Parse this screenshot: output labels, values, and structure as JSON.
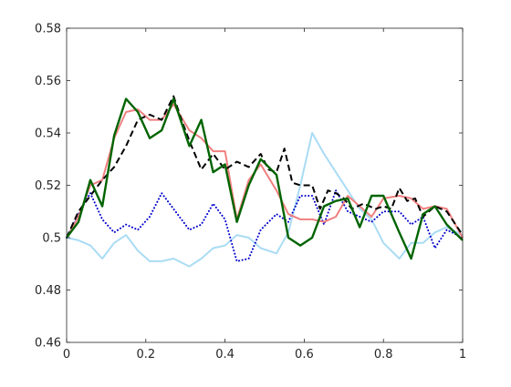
{
  "chart_data": {
    "type": "line",
    "title": "",
    "xlabel": "",
    "ylabel": "",
    "xlim": [
      0,
      1
    ],
    "ylim": [
      0.46,
      0.58
    ],
    "xticks": [
      0,
      0.2,
      0.4,
      0.6,
      0.8,
      1
    ],
    "xtick_labels": [
      "0",
      "0.2",
      "0.4",
      "0.6",
      "0.8",
      "1"
    ],
    "yticks": [
      0.46,
      0.48,
      0.5,
      0.52,
      0.54,
      0.56,
      0.58
    ],
    "ytick_labels": [
      "0.46",
      "0.48",
      "0.5",
      "0.52",
      "0.54",
      "0.56",
      "0.58"
    ],
    "grid": false,
    "legend": false,
    "series": [
      {
        "color": "#aadcf4",
        "style": "solid",
        "width": 2,
        "points": [
          [
            0,
            0.5
          ],
          [
            0.03,
            0.499
          ],
          [
            0.06,
            0.497
          ],
          [
            0.09,
            0.492
          ],
          [
            0.12,
            0.498
          ],
          [
            0.15,
            0.501
          ],
          [
            0.18,
            0.495
          ],
          [
            0.21,
            0.491
          ],
          [
            0.24,
            0.491
          ],
          [
            0.27,
            0.492
          ],
          [
            0.31,
            0.489
          ],
          [
            0.34,
            0.492
          ],
          [
            0.37,
            0.496
          ],
          [
            0.4,
            0.497
          ],
          [
            0.43,
            0.501
          ],
          [
            0.46,
            0.5
          ],
          [
            0.49,
            0.496
          ],
          [
            0.53,
            0.494
          ],
          [
            0.56,
            0.502
          ],
          [
            0.59,
            0.52
          ],
          [
            0.62,
            0.54
          ],
          [
            0.65,
            0.532
          ],
          [
            0.68,
            0.525
          ],
          [
            0.71,
            0.518
          ],
          [
            0.74,
            0.511
          ],
          [
            0.77,
            0.507
          ],
          [
            0.8,
            0.498
          ],
          [
            0.84,
            0.492
          ],
          [
            0.87,
            0.498
          ],
          [
            0.9,
            0.498
          ],
          [
            0.93,
            0.502
          ],
          [
            0.96,
            0.504
          ],
          [
            1.0,
            0.501
          ]
        ]
      },
      {
        "color": "#0000cc",
        "style": "dotted",
        "width": 2,
        "points": [
          [
            0,
            0.5
          ],
          [
            0.03,
            0.509
          ],
          [
            0.06,
            0.517
          ],
          [
            0.09,
            0.507
          ],
          [
            0.12,
            0.502
          ],
          [
            0.15,
            0.505
          ],
          [
            0.18,
            0.503
          ],
          [
            0.21,
            0.508
          ],
          [
            0.24,
            0.517
          ],
          [
            0.27,
            0.511
          ],
          [
            0.31,
            0.503
          ],
          [
            0.34,
            0.505
          ],
          [
            0.37,
            0.513
          ],
          [
            0.4,
            0.507
          ],
          [
            0.43,
            0.491
          ],
          [
            0.46,
            0.492
          ],
          [
            0.49,
            0.503
          ],
          [
            0.53,
            0.509
          ],
          [
            0.56,
            0.506
          ],
          [
            0.59,
            0.516
          ],
          [
            0.62,
            0.516
          ],
          [
            0.65,
            0.505
          ],
          [
            0.68,
            0.518
          ],
          [
            0.71,
            0.51
          ],
          [
            0.74,
            0.508
          ],
          [
            0.77,
            0.506
          ],
          [
            0.8,
            0.51
          ],
          [
            0.84,
            0.51
          ],
          [
            0.87,
            0.505
          ],
          [
            0.9,
            0.508
          ],
          [
            0.93,
            0.496
          ],
          [
            0.96,
            0.503
          ],
          [
            1.0,
            0.5
          ]
        ]
      },
      {
        "color": "#f08080",
        "style": "solid",
        "width": 2,
        "points": [
          [
            0,
            0.5
          ],
          [
            0.03,
            0.508
          ],
          [
            0.06,
            0.52
          ],
          [
            0.09,
            0.522
          ],
          [
            0.12,
            0.538
          ],
          [
            0.15,
            0.548
          ],
          [
            0.18,
            0.549
          ],
          [
            0.21,
            0.545
          ],
          [
            0.24,
            0.545
          ],
          [
            0.27,
            0.551
          ],
          [
            0.31,
            0.541
          ],
          [
            0.34,
            0.538
          ],
          [
            0.37,
            0.533
          ],
          [
            0.4,
            0.533
          ],
          [
            0.43,
            0.507
          ],
          [
            0.46,
            0.522
          ],
          [
            0.49,
            0.528
          ],
          [
            0.53,
            0.518
          ],
          [
            0.56,
            0.509
          ],
          [
            0.59,
            0.507
          ],
          [
            0.62,
            0.507
          ],
          [
            0.65,
            0.506
          ],
          [
            0.68,
            0.508
          ],
          [
            0.71,
            0.516
          ],
          [
            0.74,
            0.512
          ],
          [
            0.77,
            0.508
          ],
          [
            0.8,
            0.515
          ],
          [
            0.84,
            0.516
          ],
          [
            0.87,
            0.515
          ],
          [
            0.9,
            0.511
          ],
          [
            0.93,
            0.512
          ],
          [
            0.96,
            0.511
          ],
          [
            1.0,
            0.5
          ]
        ]
      },
      {
        "color": "#000000",
        "style": "dashed",
        "width": 2,
        "points": [
          [
            0,
            0.5
          ],
          [
            0.03,
            0.51
          ],
          [
            0.06,
            0.516
          ],
          [
            0.09,
            0.522
          ],
          [
            0.12,
            0.527
          ],
          [
            0.15,
            0.535
          ],
          [
            0.18,
            0.545
          ],
          [
            0.21,
            0.547
          ],
          [
            0.24,
            0.545
          ],
          [
            0.27,
            0.554
          ],
          [
            0.29,
            0.545
          ],
          [
            0.31,
            0.537
          ],
          [
            0.34,
            0.526
          ],
          [
            0.37,
            0.532
          ],
          [
            0.4,
            0.526
          ],
          [
            0.43,
            0.529
          ],
          [
            0.46,
            0.527
          ],
          [
            0.49,
            0.532
          ],
          [
            0.51,
            0.526
          ],
          [
            0.53,
            0.525
          ],
          [
            0.55,
            0.534
          ],
          [
            0.57,
            0.521
          ],
          [
            0.59,
            0.52
          ],
          [
            0.62,
            0.52
          ],
          [
            0.64,
            0.511
          ],
          [
            0.66,
            0.518
          ],
          [
            0.68,
            0.517
          ],
          [
            0.7,
            0.515
          ],
          [
            0.72,
            0.511
          ],
          [
            0.75,
            0.513
          ],
          [
            0.78,
            0.511
          ],
          [
            0.8,
            0.512
          ],
          [
            0.82,
            0.511
          ],
          [
            0.84,
            0.519
          ],
          [
            0.86,
            0.514
          ],
          [
            0.88,
            0.515
          ],
          [
            0.9,
            0.508
          ],
          [
            0.93,
            0.512
          ],
          [
            0.96,
            0.51
          ],
          [
            1.0,
            0.501
          ]
        ]
      },
      {
        "color": "#006400",
        "style": "solid",
        "width": 2.4,
        "points": [
          [
            0,
            0.5
          ],
          [
            0.03,
            0.506
          ],
          [
            0.06,
            0.522
          ],
          [
            0.09,
            0.512
          ],
          [
            0.12,
            0.539
          ],
          [
            0.15,
            0.553
          ],
          [
            0.18,
            0.548
          ],
          [
            0.21,
            0.538
          ],
          [
            0.24,
            0.541
          ],
          [
            0.27,
            0.553
          ],
          [
            0.31,
            0.535
          ],
          [
            0.34,
            0.545
          ],
          [
            0.37,
            0.525
          ],
          [
            0.4,
            0.528
          ],
          [
            0.43,
            0.506
          ],
          [
            0.46,
            0.52
          ],
          [
            0.49,
            0.53
          ],
          [
            0.53,
            0.524
          ],
          [
            0.56,
            0.5
          ],
          [
            0.59,
            0.497
          ],
          [
            0.62,
            0.5
          ],
          [
            0.65,
            0.512
          ],
          [
            0.68,
            0.514
          ],
          [
            0.71,
            0.515
          ],
          [
            0.74,
            0.504
          ],
          [
            0.77,
            0.516
          ],
          [
            0.8,
            0.516
          ],
          [
            0.84,
            0.502
          ],
          [
            0.87,
            0.492
          ],
          [
            0.9,
            0.509
          ],
          [
            0.93,
            0.512
          ],
          [
            0.96,
            0.505
          ],
          [
            1.0,
            0.499
          ]
        ]
      }
    ]
  }
}
